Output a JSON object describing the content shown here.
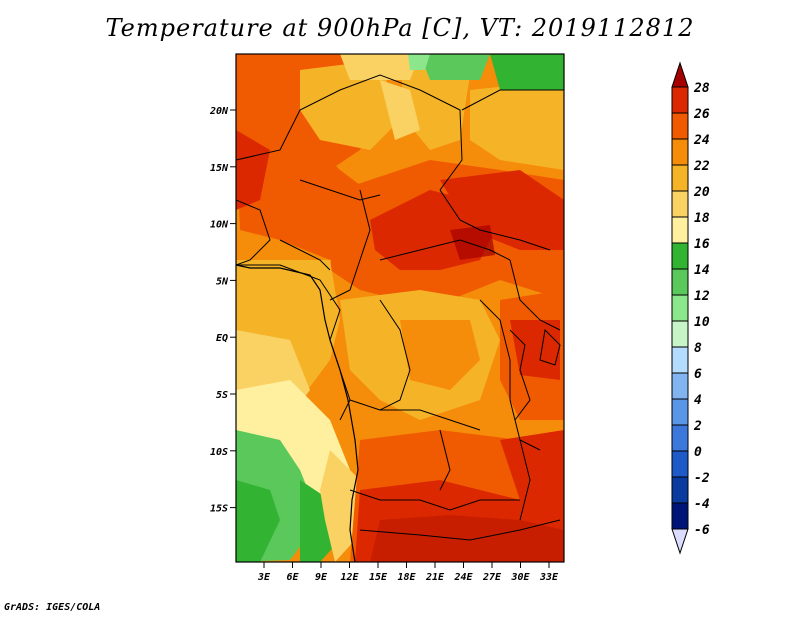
{
  "title": "Temperature at 900hPa [C], VT: 2019112812",
  "credit": "GrADS: IGES/COLA",
  "map": {
    "lon_range": [
      0,
      34.5
    ],
    "lat_range": [
      -20,
      24.5
    ],
    "lat_ticks": [
      "20N",
      "15N",
      "10N",
      "5N",
      "EQ",
      "5S",
      "10S",
      "15S"
    ],
    "lon_ticks": [
      "3E",
      "6E",
      "9E",
      "12E",
      "15E",
      "18E",
      "21E",
      "24E",
      "27E",
      "30E",
      "33E"
    ]
  },
  "colorbar": {
    "labels": [
      "28",
      "26",
      "24",
      "22",
      "20",
      "18",
      "16",
      "14",
      "12",
      "10",
      "8",
      "6",
      "4",
      "2",
      "0",
      "-2",
      "-4",
      "-6"
    ],
    "colors": [
      "#a50000",
      "#dc2800",
      "#f05a00",
      "#f58c0a",
      "#f5b428",
      "#fad264",
      "#fff0a0",
      "#32b432",
      "#5ac85a",
      "#8ce68c",
      "#c8f5c8",
      "#b4dcff",
      "#82b4f0",
      "#5a96e6",
      "#3c78dc",
      "#1e5ac8",
      "#0a3ca0",
      "#001478",
      "#000050",
      "#dcdcff"
    ]
  }
}
